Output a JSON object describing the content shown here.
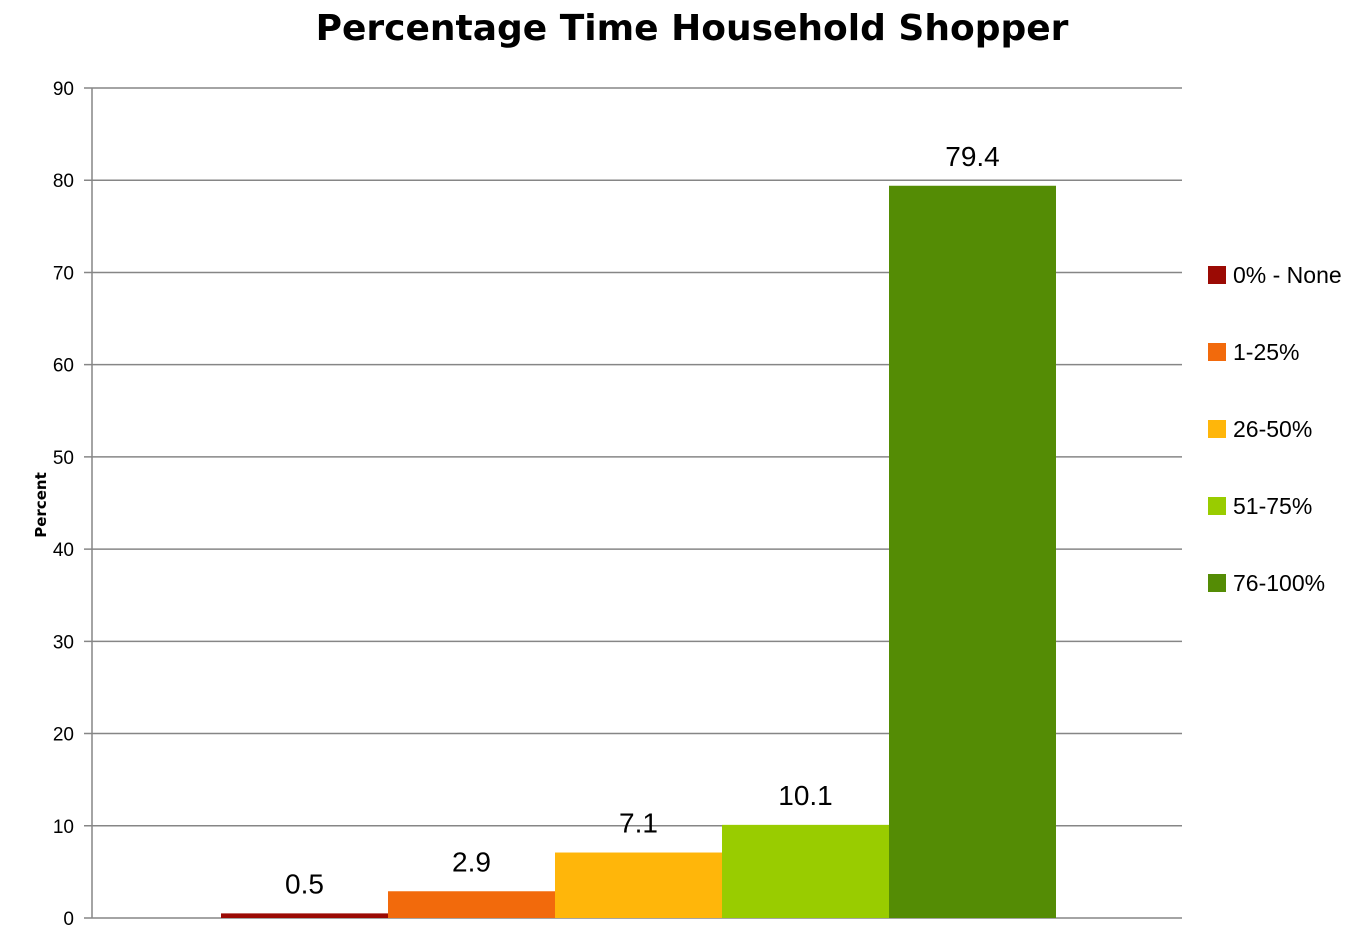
{
  "chart_data": {
    "type": "bar",
    "title": "Percentage Time Household Shopper",
    "xlabel": "",
    "ylabel": "Percent",
    "ylim": [
      0,
      90
    ],
    "yticks": [
      0,
      10,
      20,
      30,
      40,
      50,
      60,
      70,
      80,
      90
    ],
    "grid": true,
    "legend_position": "right",
    "series": [
      {
        "name": "0% - None",
        "value": 0.5,
        "label": "0.5",
        "color": "#9b0a04"
      },
      {
        "name": "1-25%",
        "value": 2.9,
        "label": "2.9",
        "color": "#f26a0c"
      },
      {
        "name": "26-50%",
        "value": 7.1,
        "label": "7.1",
        "color": "#ffb60a"
      },
      {
        "name": "51-75%",
        "value": 10.1,
        "label": "10.1",
        "color": "#99cc00"
      },
      {
        "name": "76-100%",
        "value": 79.4,
        "label": "79.4",
        "color": "#548c05"
      }
    ]
  }
}
